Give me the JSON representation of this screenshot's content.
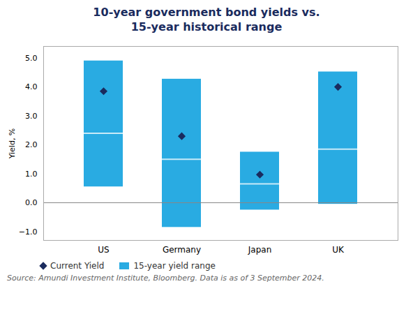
{
  "chart_data": {
    "type": "bar",
    "title": "10-year government bond yields vs.\n15-year historical range",
    "ylabel": "Yield, %",
    "source": "Source: Amundi Investment Institute, Bloomberg. Data is as of 3 September 2024.",
    "categories": [
      "US",
      "Germany",
      "Japan",
      "UK"
    ],
    "series": [
      {
        "name": "Current Yield",
        "type": "scatter",
        "marker": "diamond",
        "color": "#1a2b5e",
        "values": [
          3.85,
          2.3,
          0.97,
          4.0
        ]
      },
      {
        "name": "15-year yield range",
        "type": "bar",
        "color": "#29abe2",
        "low": [
          0.55,
          -0.85,
          -0.25,
          -0.05
        ],
        "high": [
          4.9,
          4.27,
          1.75,
          4.52
        ],
        "median": [
          2.4,
          1.5,
          0.65,
          1.85
        ]
      }
    ],
    "ylim": [
      -1.3,
      5.4
    ],
    "yticks": [
      -1,
      0,
      1,
      2,
      3,
      4,
      5
    ],
    "grid": false,
    "legend": "bottom"
  }
}
